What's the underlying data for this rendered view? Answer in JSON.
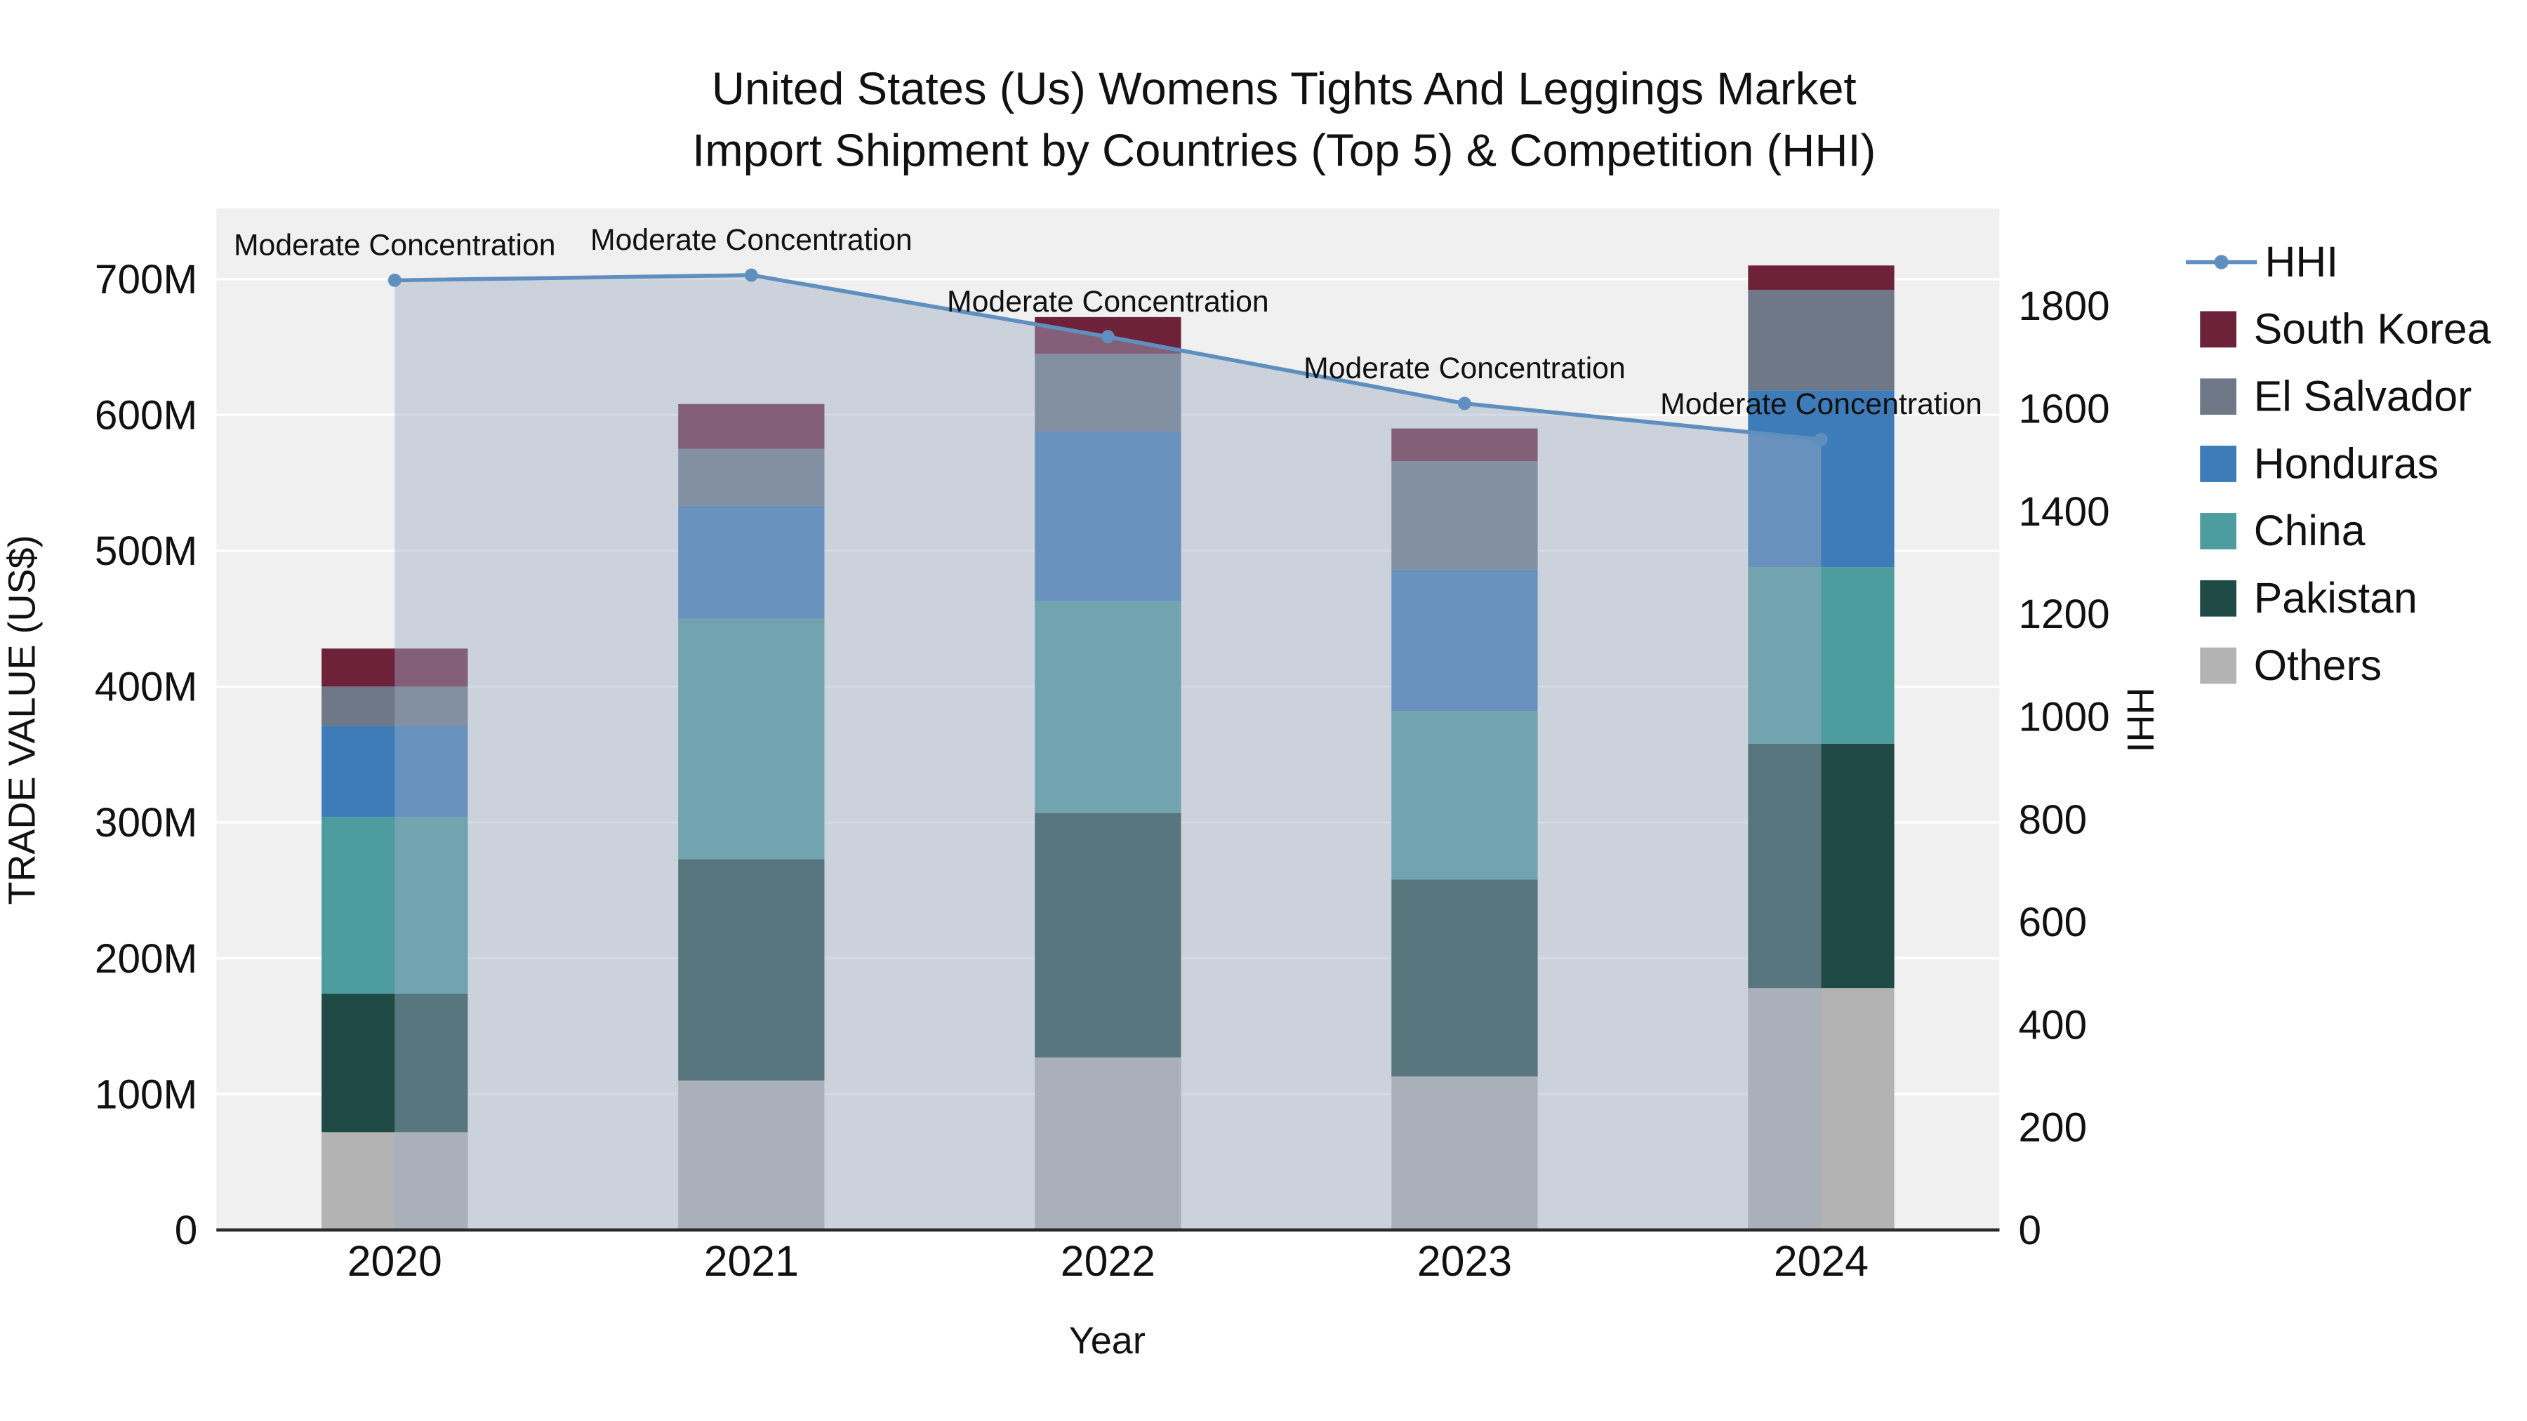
{
  "chart_data": {
    "type": "bar",
    "stacked": true,
    "overlay_line": true,
    "title": "United States (Us) Womens Tights And Leggings Market",
    "subtitle": "Import Shipment by Countries (Top 5) & Competition (HHI)",
    "xlabel": "Year",
    "ylabel_left": "TRADE VALUE (US$)",
    "ylabel_right": "HHI",
    "categories": [
      "2020",
      "2021",
      "2022",
      "2023",
      "2024"
    ],
    "value_unit": "millions US$",
    "series": [
      {
        "name": "Others",
        "color": "#b3b3b3",
        "values": [
          72,
          110,
          127,
          113,
          178
        ]
      },
      {
        "name": "Pakistan",
        "color": "#1f4a45",
        "values": [
          102,
          163,
          180,
          145,
          180
        ]
      },
      {
        "name": "China",
        "color": "#4d9d9f",
        "values": [
          130,
          177,
          156,
          124,
          130
        ]
      },
      {
        "name": "Honduras",
        "color": "#3d7cb8",
        "values": [
          67,
          83,
          125,
          104,
          130
        ]
      },
      {
        "name": "El Salvador",
        "color": "#6e7887",
        "values": [
          29,
          42,
          57,
          80,
          74
        ]
      },
      {
        "name": "South Korea",
        "color": "#6d2239",
        "values": [
          28,
          33,
          27,
          24,
          18
        ]
      }
    ],
    "line_series": {
      "name": "HHI",
      "color": "#5f8fbf",
      "fill_color": "#9eacc4",
      "fill_opacity": 0.45,
      "values": [
        1850,
        1860,
        1740,
        1610,
        1540
      ]
    },
    "annotations": [
      "Moderate Concentration",
      "Moderate Concentration",
      "Moderate Concentration",
      "Moderate Concentration",
      "Moderate Concentration"
    ],
    "y_left_axis": {
      "tick_labels": [
        "0",
        "100M",
        "200M",
        "300M",
        "400M",
        "500M",
        "600M",
        "700M"
      ],
      "tick_values": [
        0,
        100,
        200,
        300,
        400,
        500,
        600,
        700
      ],
      "max": 752
    },
    "y_right_axis": {
      "tick_labels": [
        "0",
        "200",
        "400",
        "600",
        "800",
        "1000",
        "1200",
        "1400",
        "1600",
        "1800"
      ],
      "tick_values": [
        0,
        200,
        400,
        600,
        800,
        1000,
        1200,
        1400,
        1600,
        1800
      ],
      "max": 1990
    },
    "legend_position": "right",
    "legend_order": [
      "HHI",
      "South Korea",
      "El Salvador",
      "Honduras",
      "China",
      "Pakistan",
      "Others"
    ],
    "plot_background": "#f0f0f0",
    "grid_color": "#ffffff"
  }
}
